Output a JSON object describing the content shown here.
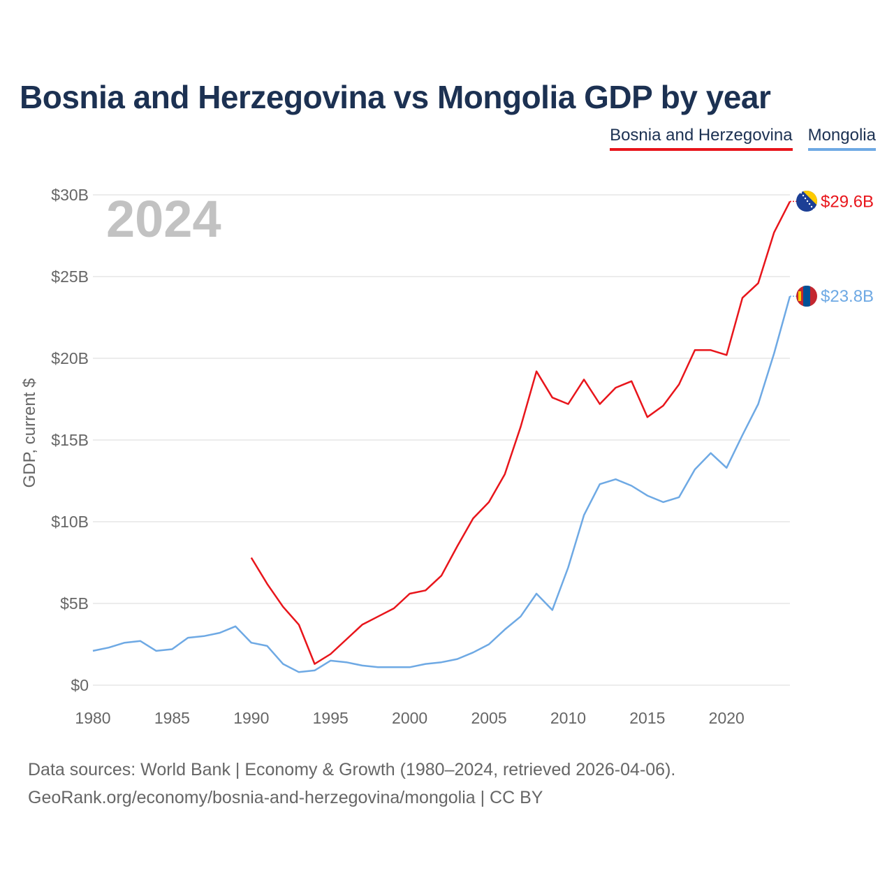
{
  "title": "Bosnia and Herzegovina vs Mongolia GDP by year",
  "legend": [
    {
      "label": "Bosnia and Herzegovina",
      "color": "#e8151b"
    },
    {
      "label": "Mongolia",
      "color": "#6ea9e4"
    }
  ],
  "year_watermark": "2024",
  "footer": {
    "line1": "Data sources: World Bank | Economy & Growth (1980–2024, retrieved 2026-04-06).",
    "line2": "GeoRank.org/economy/bosnia-and-herzegovina/mongolia | CC BY"
  },
  "chart_data": {
    "type": "line",
    "title": "Bosnia and Herzegovina vs Mongolia GDP by year",
    "xlabel": "",
    "ylabel": "GDP, current $",
    "xlim": [
      1980,
      2024
    ],
    "ylim": [
      0,
      30
    ],
    "y_unit": "billion USD",
    "x_ticks": [
      1980,
      1985,
      1990,
      1995,
      2000,
      2005,
      2010,
      2015,
      2020
    ],
    "y_ticks": [
      {
        "value": 0,
        "label": "$0"
      },
      {
        "value": 5,
        "label": "$5B"
      },
      {
        "value": 10,
        "label": "$10B"
      },
      {
        "value": 15,
        "label": "$15B"
      },
      {
        "value": 20,
        "label": "$20B"
      },
      {
        "value": 25,
        "label": "$25B"
      },
      {
        "value": 30,
        "label": "$30B"
      }
    ],
    "grid": true,
    "series": [
      {
        "name": "Bosnia and Herzegovina",
        "color": "#e8151b",
        "end_label": "$29.6B",
        "x": [
          1990,
          1991,
          1992,
          1993,
          1994,
          1995,
          1996,
          1997,
          1998,
          1999,
          2000,
          2001,
          2002,
          2003,
          2004,
          2005,
          2006,
          2007,
          2008,
          2009,
          2010,
          2011,
          2012,
          2013,
          2014,
          2015,
          2016,
          2017,
          2018,
          2019,
          2020,
          2021,
          2022,
          2023,
          2024
        ],
        "values": [
          7.8,
          6.2,
          4.8,
          3.7,
          1.3,
          1.9,
          2.8,
          3.7,
          4.2,
          4.7,
          5.6,
          5.8,
          6.7,
          8.5,
          10.2,
          11.2,
          12.9,
          15.8,
          19.2,
          17.6,
          17.2,
          18.7,
          17.2,
          18.2,
          18.6,
          16.4,
          17.1,
          18.4,
          20.5,
          20.5,
          20.2,
          23.7,
          24.6,
          27.7,
          29.6
        ]
      },
      {
        "name": "Mongolia",
        "color": "#6ea9e4",
        "end_label": "$23.8B",
        "x": [
          1980,
          1981,
          1982,
          1983,
          1984,
          1985,
          1986,
          1987,
          1988,
          1989,
          1990,
          1991,
          1992,
          1993,
          1994,
          1995,
          1996,
          1997,
          1998,
          1999,
          2000,
          2001,
          2002,
          2003,
          2004,
          2005,
          2006,
          2007,
          2008,
          2009,
          2010,
          2011,
          2012,
          2013,
          2014,
          2015,
          2016,
          2017,
          2018,
          2019,
          2020,
          2021,
          2022,
          2023,
          2024
        ],
        "values": [
          2.1,
          2.3,
          2.6,
          2.7,
          2.1,
          2.2,
          2.9,
          3.0,
          3.2,
          3.6,
          2.6,
          2.4,
          1.3,
          0.8,
          0.9,
          1.5,
          1.4,
          1.2,
          1.1,
          1.1,
          1.1,
          1.3,
          1.4,
          1.6,
          2.0,
          2.5,
          3.4,
          4.2,
          5.6,
          4.6,
          7.2,
          10.4,
          12.3,
          12.6,
          12.2,
          11.6,
          11.2,
          11.5,
          13.2,
          14.2,
          13.3,
          15.3,
          17.2,
          20.3,
          23.8
        ]
      }
    ]
  },
  "icons": {
    "bosnia": "bosnia-flag-icon",
    "mongolia": "mongolia-flag-icon"
  }
}
